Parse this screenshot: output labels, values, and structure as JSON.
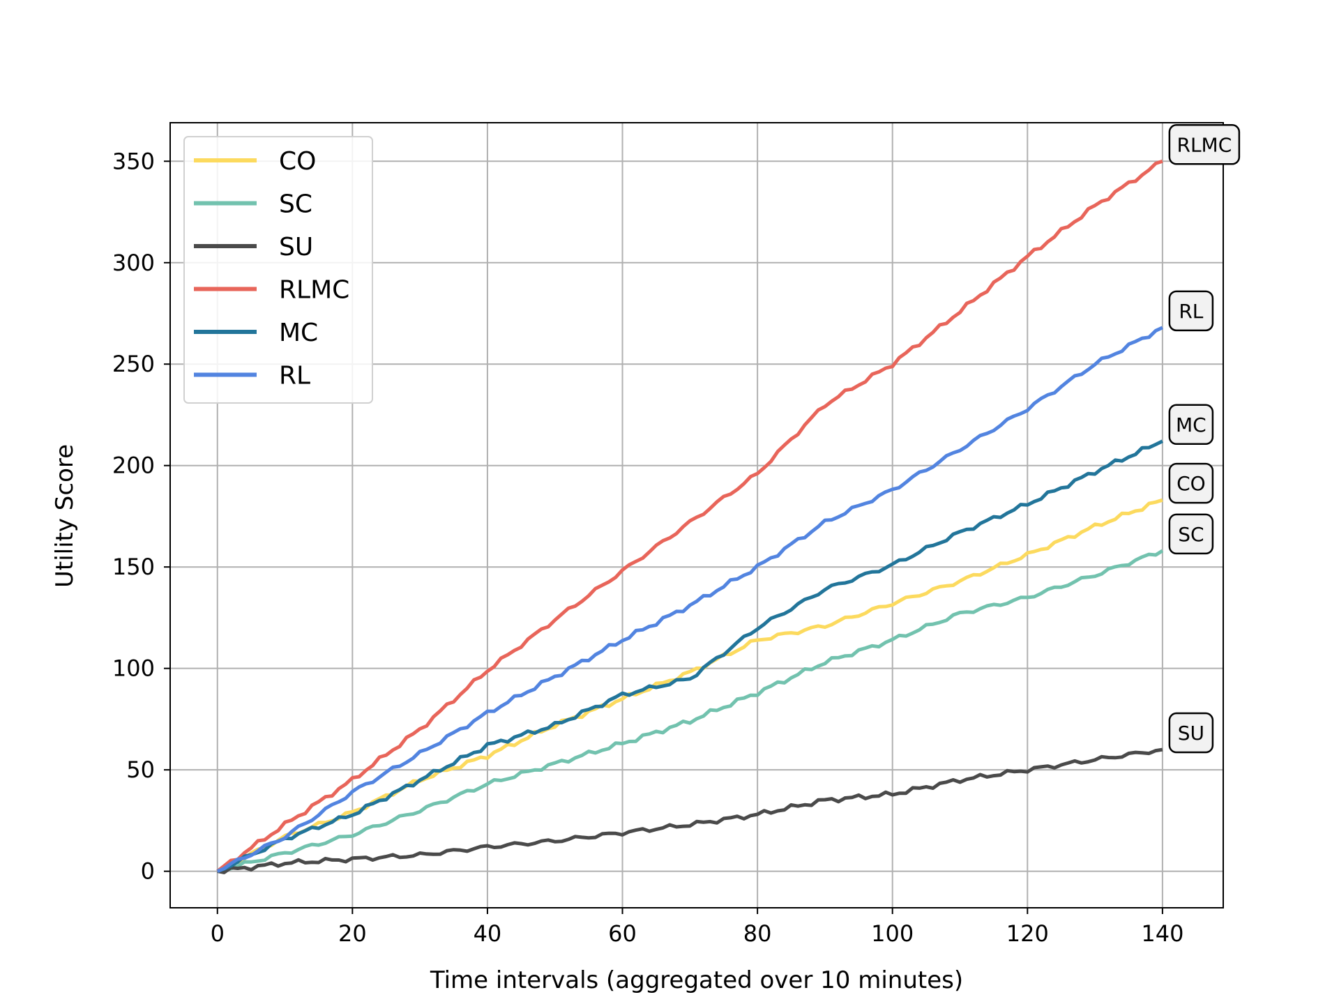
{
  "chart_data": {
    "type": "line",
    "title": "",
    "xlabel": "Time intervals (aggregated over 10 minutes)",
    "ylabel": "Utility Score",
    "xlim": [
      -7,
      149
    ],
    "ylim": [
      -18,
      369
    ],
    "xticks": [
      0,
      20,
      40,
      60,
      80,
      100,
      120,
      140
    ],
    "yticks": [
      0,
      50,
      100,
      150,
      200,
      250,
      300,
      350
    ],
    "grid": true,
    "legend_position": "top-left",
    "series": [
      {
        "name": "CO",
        "color": "#fcda5e",
        "x": [
          0,
          10,
          20,
          30,
          40,
          50,
          60,
          70,
          80,
          90,
          100,
          110,
          120,
          130,
          140
        ],
        "values": [
          0,
          17,
          29,
          45,
          57,
          72,
          85,
          98,
          114,
          121,
          132,
          143,
          156,
          170,
          183
        ],
        "end_label": "CO"
      },
      {
        "name": "SC",
        "color": "#72c2ae",
        "x": [
          0,
          10,
          20,
          30,
          40,
          50,
          60,
          70,
          80,
          90,
          100,
          110,
          120,
          130,
          140
        ],
        "values": [
          0,
          9,
          18,
          30,
          43,
          53,
          63,
          74,
          88,
          103,
          114,
          127,
          135,
          146,
          158
        ],
        "end_label": "SC"
      },
      {
        "name": "SU",
        "color": "#4a4a4a",
        "x": [
          0,
          10,
          20,
          30,
          40,
          50,
          60,
          70,
          80,
          90,
          100,
          110,
          120,
          130,
          140
        ],
        "values": [
          0,
          4,
          6,
          8,
          12,
          15,
          19,
          23,
          28,
          35,
          38,
          45,
          50,
          55,
          60
        ],
        "end_label": "SU"
      },
      {
        "name": "RLMC",
        "color": "#e8655a",
        "x": [
          0,
          10,
          20,
          30,
          40,
          50,
          60,
          70,
          80,
          90,
          100,
          110,
          120,
          130,
          140
        ],
        "values": [
          0,
          23,
          45,
          70,
          99,
          124,
          148,
          172,
          196,
          230,
          250,
          276,
          303,
          328,
          350
        ],
        "end_label": "RLMC"
      },
      {
        "name": "MC",
        "color": "#22759a",
        "x": [
          0,
          10,
          20,
          30,
          40,
          50,
          60,
          70,
          80,
          90,
          100,
          110,
          120,
          130,
          140
        ],
        "values": [
          0,
          16,
          28,
          45,
          62,
          72,
          87,
          95,
          120,
          139,
          151,
          167,
          181,
          197,
          212
        ],
        "end_label": "MC"
      },
      {
        "name": "RL",
        "color": "#5284e0",
        "x": [
          0,
          10,
          20,
          30,
          40,
          50,
          60,
          70,
          80,
          90,
          100,
          110,
          120,
          130,
          140
        ],
        "values": [
          0,
          17,
          39,
          58,
          78,
          96,
          114,
          131,
          150,
          172,
          188,
          208,
          228,
          250,
          268
        ],
        "end_label": "RL"
      }
    ]
  }
}
